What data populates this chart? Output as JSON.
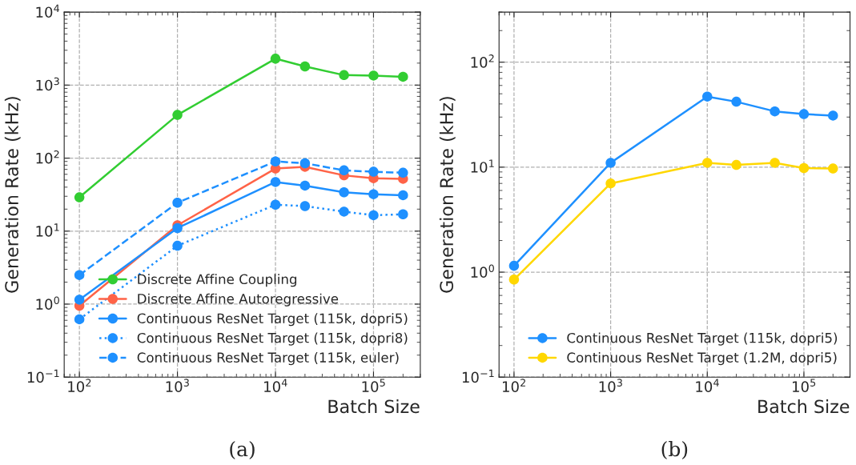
{
  "chart_data": [
    {
      "type": "line",
      "xlabel": "Batch Size",
      "ylabel": "Generation Rate (kHz)",
      "log": "xy",
      "grid": true,
      "legend": "bottom right",
      "marker": "circle",
      "annotations": [
        "(a)"
      ],
      "xlim": [
        70,
        300000
      ],
      "ylim": [
        0.1,
        10000
      ],
      "xticks": [
        {
          "value": 100,
          "label": "10$^{2}$"
        },
        {
          "value": 1000,
          "label": "10$^{3}$"
        },
        {
          "value": 10000,
          "label": "10$^{4}$"
        },
        {
          "value": 100000,
          "label": "10$^{5}$"
        }
      ],
      "yticks": [
        {
          "value": 0.1,
          "label": "10$^{−1}$"
        },
        {
          "value": 1,
          "label": "10$^{0}$"
        },
        {
          "value": 10,
          "label": "10$^{1}$"
        },
        {
          "value": 100,
          "label": "10$^{2}$"
        },
        {
          "value": 1000,
          "label": "10$^{3}$"
        },
        {
          "value": 10000,
          "label": "10$^{4}$"
        }
      ],
      "x": [
        100,
        1000,
        10000,
        20000,
        50000,
        100000,
        200000
      ],
      "series": [
        {
          "name": "Discrete Affine Coupling",
          "color": "#32cd32",
          "line_style": "solid",
          "values": [
            29,
            390,
            2300,
            1800,
            1370,
            1350,
            1300
          ]
        },
        {
          "name": "Discrete Affine Autoregressive",
          "color": "#ff6347",
          "line_style": "solid",
          "values": [
            0.95,
            12,
            72,
            76,
            58,
            53,
            52
          ]
        },
        {
          "name": "Continuous ResNet Target (115k, dopri5)",
          "color": "#1e90ff",
          "line_style": "solid",
          "values": [
            1.15,
            11,
            47,
            42,
            34,
            32,
            31
          ]
        },
        {
          "name": "Continuous ResNet Target (115k, dopri8)",
          "color": "#1e90ff",
          "line_style": "dotted",
          "values": [
            0.62,
            6.3,
            23,
            22,
            18.5,
            16.5,
            17
          ]
        },
        {
          "name": "Continuous ResNet Target (115k, euler)",
          "color": "#1e90ff",
          "line_style": "dashed",
          "values": [
            2.5,
            24.5,
            90,
            85,
            68,
            65,
            63
          ]
        }
      ]
    },
    {
      "type": "line",
      "xlabel": "Batch Size",
      "ylabel": "Generation Rate (kHz)",
      "log": "xy",
      "grid": true,
      "legend": "bottom right",
      "marker": "circle",
      "annotations": [
        "(b)"
      ],
      "xlim": [
        70,
        300000
      ],
      "ylim": [
        0.1,
        300
      ],
      "xticks": [
        {
          "value": 100,
          "label": "10$^{2}$"
        },
        {
          "value": 1000,
          "label": "10$^{3}$"
        },
        {
          "value": 10000,
          "label": "10$^{4}$"
        },
        {
          "value": 100000,
          "label": "10$^{5}$"
        }
      ],
      "yticks": [
        {
          "value": 0.1,
          "label": "10$^{−1}$"
        },
        {
          "value": 1,
          "label": "10$^{0}$"
        },
        {
          "value": 10,
          "label": "10$^{1}$"
        },
        {
          "value": 100,
          "label": "10$^{2}$"
        }
      ],
      "x": [
        100,
        1000,
        10000,
        20000,
        50000,
        100000,
        200000
      ],
      "series": [
        {
          "name": "Continuous ResNet Target (115k, dopri5)",
          "color": "#1e90ff",
          "line_style": "solid",
          "values": [
            1.15,
            11,
            47,
            42,
            34,
            32,
            31
          ]
        },
        {
          "name": "Continuous ResNet Target (1.2M, dopri5)",
          "color": "#ffd700",
          "line_style": "solid",
          "values": [
            0.85,
            7,
            11,
            10.5,
            11,
            9.8,
            9.7
          ]
        }
      ]
    }
  ]
}
